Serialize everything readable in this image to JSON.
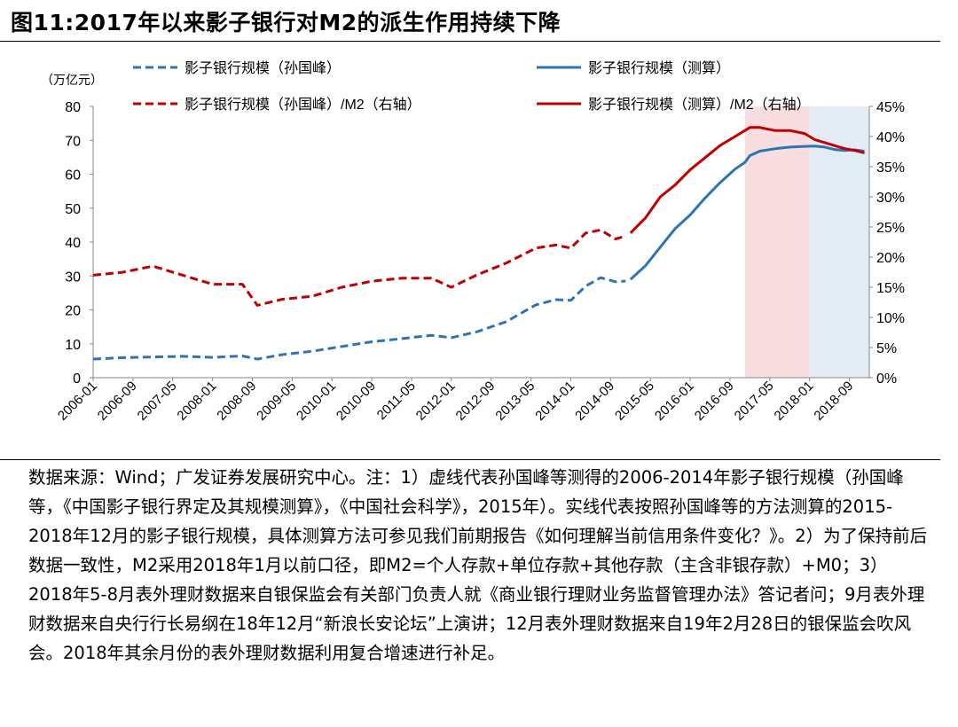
{
  "title": "图11:2017年以来影子银行对M2的派生作用持续下降",
  "note": "数据来源：Wind；广发证券发展研究中心。注：1）虚线代表孙国峰等测得的2006-2014年影子银行规模（孙国峰等，《中国影子银行界定及其规模测算》，《中国社会科学》，2015年）。实线代表按照孙国峰等的方法测算的2015-2018年12月的影子银行规模，具体测算方法可参见我们前期报告《如何理解当前信用条件变化？》。2）为了保持前后数据一致性，M2采用2018年1月以前口径，即M2=个人存款+单位存款+其他存款（主含非银存款）+M0；3）2018年5-8月表外理财数据来自银保监会有关部门负责人就《商业银行理财业务监督管理办法》答记者问；9月表外理财数据来自央行行长易纲在18年12月“新浪长安论坛”上演讲；12月表外理财数据来自19年2月28日的银保监会吹风会。2018年其余月份的表外理财数据利用复合增速进行补足。",
  "chart_data": {
    "type": "line",
    "y_unit": "（万亿元）",
    "ylim": [
      0,
      80
    ],
    "y_ticks": [
      "0",
      "10",
      "20",
      "30",
      "40",
      "50",
      "60",
      "70",
      "80"
    ],
    "y2lim": [
      0,
      0.45
    ],
    "y2_ticks": [
      "0%",
      "5%",
      "10%",
      "15%",
      "20%",
      "25%",
      "30%",
      "35%",
      "40%",
      "45%"
    ],
    "x_ticks": [
      "2006-01",
      "2006-09",
      "2007-05",
      "2008-01",
      "2008-09",
      "2009-05",
      "2010-01",
      "2010-09",
      "2011-05",
      "2012-01",
      "2012-09",
      "2013-05",
      "2014-01",
      "2014-09",
      "2015-05",
      "2016-01",
      "2016-09",
      "2017-05",
      "2018-01",
      "2018-09"
    ],
    "x_range": [
      "2006-01",
      "2018-12"
    ],
    "shaded_regions": [
      {
        "from": "2016-12",
        "to": "2017-12",
        "color": "#f8dde1"
      },
      {
        "from": "2018-01",
        "to": "2018-12",
        "color": "#e3ecf5"
      }
    ],
    "legend_position": "top",
    "series": [
      {
        "name": "影子银行规模（孙国峰）",
        "axis": "left",
        "color": "#2e74b5",
        "style": "dashed",
        "x": [
          "2006-01",
          "2006-07",
          "2007-01",
          "2007-07",
          "2008-01",
          "2008-07",
          "2008-10",
          "2009-03",
          "2009-09",
          "2010-03",
          "2010-09",
          "2011-03",
          "2011-09",
          "2012-01",
          "2012-06",
          "2012-12",
          "2013-06",
          "2013-10",
          "2014-01",
          "2014-04",
          "2014-07",
          "2014-10",
          "2014-12"
        ],
        "values": [
          5.5,
          5.9,
          6.1,
          6.3,
          6.0,
          6.4,
          5.5,
          6.8,
          7.8,
          9.2,
          10.6,
          11.5,
          12.5,
          11.8,
          13.5,
          16.5,
          21.5,
          23.0,
          22.8,
          27.0,
          29.5,
          28.3,
          28.5
        ]
      },
      {
        "name": "影子银行规模（测算）",
        "axis": "left",
        "color": "#2e74b5",
        "style": "solid",
        "x": [
          "2015-01",
          "2015-04",
          "2015-07",
          "2015-10",
          "2016-01",
          "2016-04",
          "2016-07",
          "2016-10",
          "2016-12",
          "2017-01",
          "2017-03",
          "2017-06",
          "2017-09",
          "2017-12",
          "2018-02",
          "2018-04",
          "2018-06",
          "2018-08",
          "2018-10",
          "2018-12"
        ],
        "values": [
          29.0,
          33.0,
          38.5,
          44.0,
          48.0,
          53.0,
          57.5,
          61.5,
          63.5,
          65.5,
          66.8,
          67.5,
          68.0,
          68.2,
          68.3,
          68.0,
          67.3,
          67.0,
          67.2,
          66.8
        ]
      },
      {
        "name": "影子银行规模（孙国峰）/M2（右轴）",
        "axis": "right",
        "color": "#c00000",
        "style": "dashed",
        "x": [
          "2006-01",
          "2006-07",
          "2007-01",
          "2007-07",
          "2008-01",
          "2008-07",
          "2008-10",
          "2009-03",
          "2009-09",
          "2010-03",
          "2010-09",
          "2011-03",
          "2011-09",
          "2012-01",
          "2012-06",
          "2012-12",
          "2013-06",
          "2013-10",
          "2014-01",
          "2014-04",
          "2014-07",
          "2014-10",
          "2014-12"
        ],
        "values": [
          0.17,
          0.175,
          0.185,
          0.17,
          0.155,
          0.155,
          0.12,
          0.13,
          0.135,
          0.15,
          0.16,
          0.165,
          0.165,
          0.15,
          0.17,
          0.19,
          0.215,
          0.22,
          0.215,
          0.24,
          0.245,
          0.23,
          0.235
        ]
      },
      {
        "name": "影子银行规模（测算）/M2（右轴）",
        "axis": "right",
        "color": "#c00000",
        "style": "solid",
        "x": [
          "2015-01",
          "2015-04",
          "2015-07",
          "2015-10",
          "2016-01",
          "2016-04",
          "2016-07",
          "2016-10",
          "2016-12",
          "2017-01",
          "2017-03",
          "2017-06",
          "2017-09",
          "2017-12",
          "2018-02",
          "2018-04",
          "2018-06",
          "2018-08",
          "2018-10",
          "2018-12"
        ],
        "values": [
          0.24,
          0.265,
          0.3,
          0.32,
          0.345,
          0.365,
          0.385,
          0.4,
          0.41,
          0.415,
          0.415,
          0.41,
          0.41,
          0.405,
          0.395,
          0.39,
          0.385,
          0.38,
          0.377,
          0.373
        ]
      }
    ]
  }
}
